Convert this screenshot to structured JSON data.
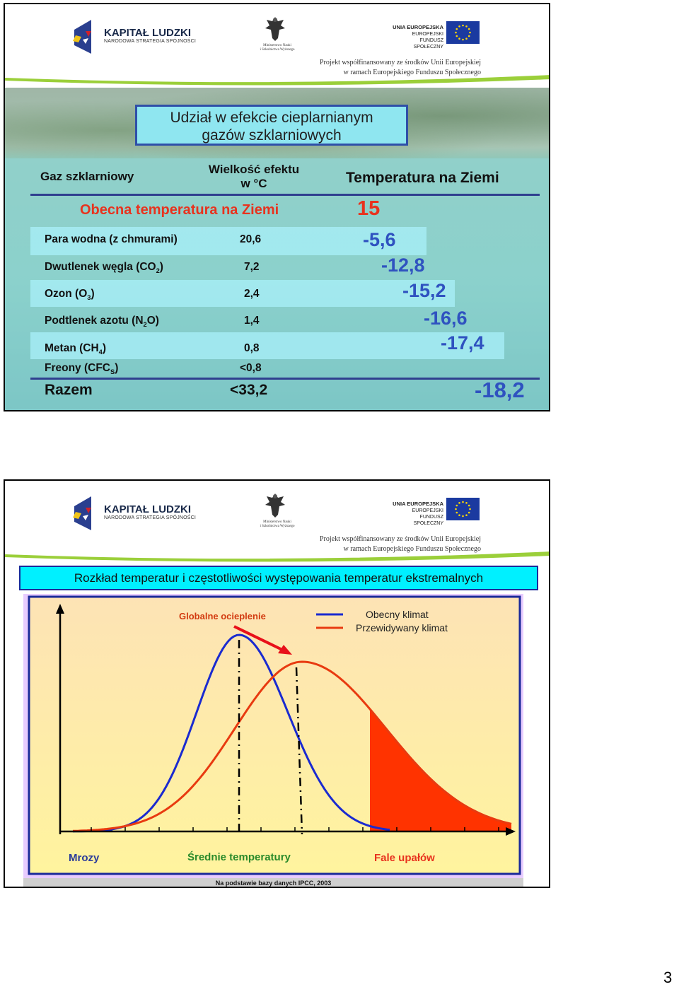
{
  "header": {
    "kl_title": "KAPITAŁ LUDZKI",
    "kl_subtitle": "NARODOWA STRATEGIA SPÓJNOŚCI",
    "ministry_line1": "Ministerstwo Nauki",
    "ministry_line2": "i Szkolnictwa Wyższego",
    "ue_line1": "UNIA EUROPEJSKA",
    "ue_line2": "EUROPEJSKI",
    "ue_line3": "FUNDUSZ SPOŁECZNY",
    "project_line1": "Projekt współfinansowany ze środków Unii Europejskiej",
    "project_line2": "w ramach Europejskiego Funduszu Społecznego"
  },
  "slide1": {
    "title_line1": "Udział w efekcie cieplarnianym",
    "title_line2": "gazów szklarniowych",
    "col_gas": "Gaz szklarniowy",
    "col_effect_line1": "Wielkość efektu",
    "col_effect_line2": "w °C",
    "col_temp": "Temperatura na Ziemi",
    "current_label": "Obecna temperatura na Ziemi",
    "current_value": "15",
    "rows": [
      {
        "gas": "Para wodna (z chmurami)",
        "effect": "20,6",
        "temp": "-5,6"
      },
      {
        "gas_pre": "Dwutlenek węgla (CO",
        "gas_sub": "2",
        "gas_post": ")",
        "effect": "7,2",
        "temp": "-12,8"
      },
      {
        "gas_pre": "Ozon  (O",
        "gas_sub": "3",
        "gas_post": ")",
        "effect": "2,4",
        "temp": "-15,2"
      },
      {
        "gas_pre": "Podtlenek azotu (N",
        "gas_sub": "2",
        "gas_post": "O)",
        "effect": "1,4",
        "temp": "-16,6"
      },
      {
        "gas_pre": "Metan (CH",
        "gas_sub": "4",
        "gas_post": ")",
        "effect": "0,8",
        "temp": "-17,4"
      },
      {
        "gas_pre": "Freony (CFC",
        "gas_sub": "S",
        "gas_post": ")",
        "effect": "<0,8",
        "temp": ""
      }
    ],
    "total_label": "Razem",
    "total_effect": "<33,2",
    "total_temp": "-18,2"
  },
  "slide2": {
    "title": "Rozkład temperatur i częstotliwości występowania temperatur ekstremalnych",
    "source": "Na podstawie bazy danych IPCC, 2003"
  },
  "chart_data": {
    "type": "line",
    "annotation": "Globalne ocieplenie",
    "series": [
      {
        "name": "Obecny klimat",
        "color": "#1a2ad0"
      },
      {
        "name": "Przewidywany klimat",
        "color": "#e83a10"
      }
    ],
    "x_labels": {
      "left": "Mrozy",
      "center": "Średnie temperatury",
      "right": "Fale upałów"
    },
    "colors": {
      "heat_fill": "#ff3300",
      "frost_fill": "#1a3acc",
      "label_text": "#d23a10",
      "bg_top": "#fde6b8",
      "bg_bottom": "#fff3a0"
    }
  },
  "page_number": "3"
}
